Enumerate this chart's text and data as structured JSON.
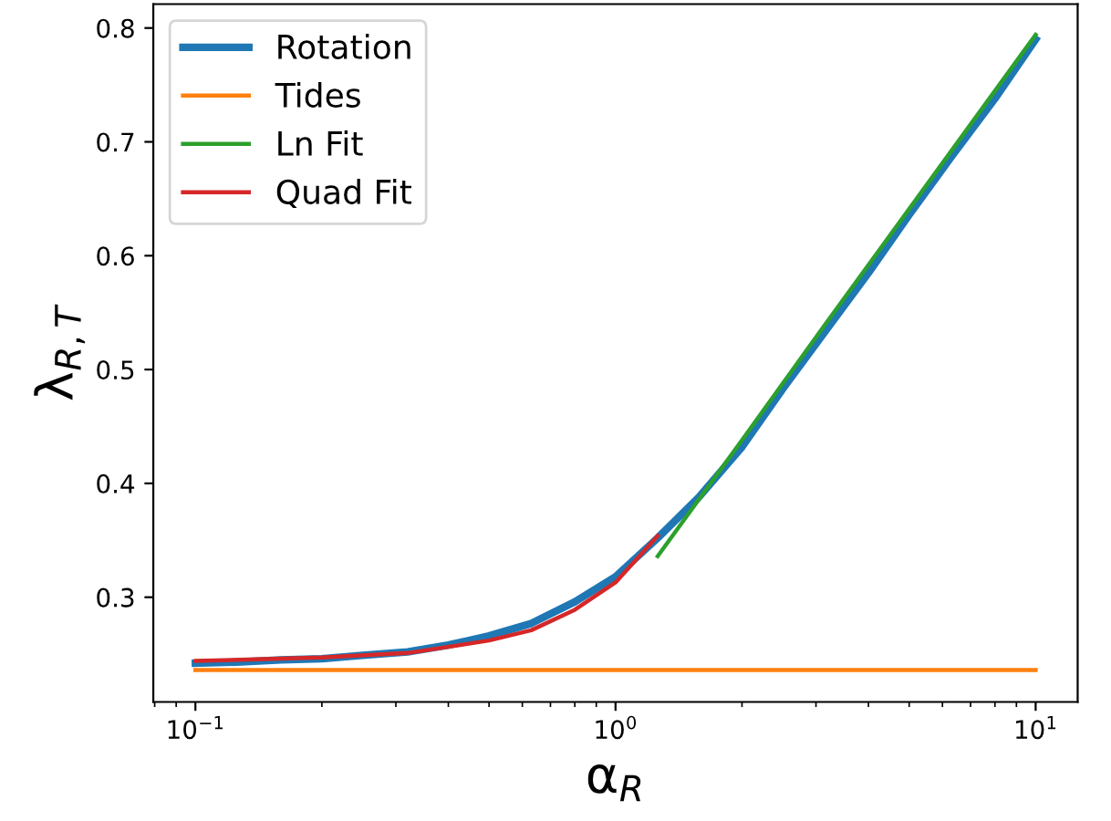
{
  "chart_data": {
    "type": "line",
    "xlabel": "α$_{R}$",
    "ylabel": "λ$_{R,T}$",
    "log": "x",
    "xlim": [
      0.0794,
      12.59
    ],
    "ylim": [
      0.208,
      0.821
    ],
    "xticks": [
      {
        "value": 0.1,
        "label": "10$^{−1}$"
      },
      {
        "value": 1,
        "label": "10$^{0}$"
      },
      {
        "value": 10,
        "label": "10$^{1}$"
      }
    ],
    "yticks": [
      0.3,
      0.4,
      0.5,
      0.6,
      0.7,
      0.8
    ],
    "grid": false,
    "legend": "top left",
    "marker": "none",
    "line_style": "solid",
    "series": [
      {
        "name": "Rotation",
        "color": "#1f77b4",
        "x": [
          0.1,
          0.125,
          0.16,
          0.2,
          0.25,
          0.32,
          0.4,
          0.5,
          0.63,
          0.8,
          1.0,
          1.26,
          1.58,
          2.0,
          2.5,
          3.16,
          4.0,
          5.0,
          6.3,
          8.0,
          10.0
        ],
        "values": [
          0.242,
          0.243,
          0.245,
          0.246,
          0.249,
          0.252,
          0.258,
          0.266,
          0.277,
          0.296,
          0.318,
          0.352,
          0.388,
          0.432,
          0.483,
          0.534,
          0.585,
          0.636,
          0.687,
          0.738,
          0.79
        ]
      },
      {
        "name": "Tides",
        "color": "#ff7f0e",
        "x": [
          0.1,
          10.0
        ],
        "values": [
          0.236,
          0.236
        ]
      },
      {
        "name": "Ln Fit",
        "color": "#2ca02c",
        "x": [
          1.26,
          2.0,
          3.16,
          5.0,
          10.0
        ],
        "values": [
          0.336,
          0.438,
          0.54,
          0.641,
          0.794
        ]
      },
      {
        "name": "Quad Fit",
        "color": "#d62728",
        "x": [
          0.1,
          0.2,
          0.32,
          0.5,
          0.63,
          0.8,
          1.0,
          1.26
        ],
        "values": [
          0.244,
          0.247,
          0.251,
          0.262,
          0.271,
          0.289,
          0.313,
          0.354
        ]
      }
    ]
  }
}
